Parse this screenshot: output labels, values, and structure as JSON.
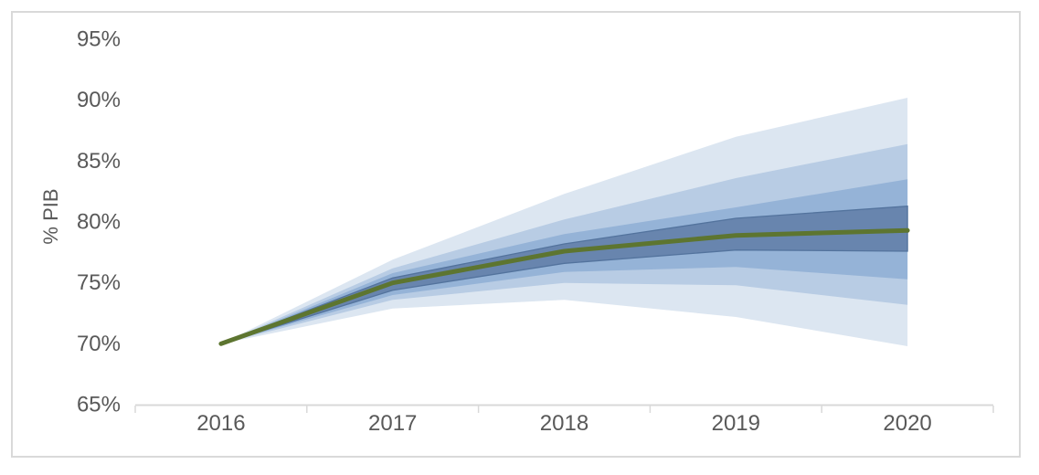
{
  "chart_data": {
    "type": "area",
    "subtype": "fan-chart",
    "title": "",
    "xlabel": "",
    "ylabel": "% PIB",
    "categories": [
      "2016",
      "2017",
      "2018",
      "2019",
      "2020"
    ],
    "ylim": [
      65,
      95
    ],
    "y_tick_step": 5,
    "grid": false,
    "legend": "none",
    "y_ticks": [
      {
        "value": 95,
        "label": "95%"
      },
      {
        "value": 90,
        "label": "90%"
      },
      {
        "value": 85,
        "label": "85%"
      },
      {
        "value": 80,
        "label": "80%"
      },
      {
        "value": 75,
        "label": "75%"
      },
      {
        "value": 70,
        "label": "70%"
      },
      {
        "value": 65,
        "label": "65%"
      }
    ],
    "central_line": {
      "name": "central-projection",
      "color": "#5d7530",
      "values": [
        70.0,
        75.0,
        77.6,
        78.9,
        79.3
      ]
    },
    "bands": [
      {
        "name": "band-outermost",
        "color": "#dce6f1",
        "upper": [
          70.0,
          76.9,
          82.3,
          87.0,
          90.2
        ],
        "lower": [
          70.0,
          72.9,
          73.6,
          72.2,
          69.8
        ]
      },
      {
        "name": "band-outer-mid",
        "color": "#b8cce4",
        "upper": [
          70.0,
          76.2,
          80.2,
          83.6,
          86.4
        ],
        "lower": [
          70.0,
          73.6,
          75.0,
          74.8,
          73.2
        ]
      },
      {
        "name": "band-inner-mid",
        "color": "#95b3d7",
        "upper": [
          70.0,
          75.8,
          79.0,
          81.2,
          83.5
        ],
        "lower": [
          70.0,
          74.0,
          75.9,
          76.3,
          75.3
        ]
      },
      {
        "name": "band-innermost",
        "color": "#6885ae",
        "stroke": "#53739d",
        "upper": [
          70.0,
          75.4,
          78.2,
          80.3,
          81.3
        ],
        "lower": [
          70.0,
          74.4,
          76.6,
          77.7,
          77.6
        ]
      }
    ]
  },
  "frame": {
    "background": "#ffffff",
    "border_color": "#d9d9d9"
  },
  "axis": {
    "line_color": "#d9d9d9",
    "tick_color": "#d9d9d9",
    "label_color": "#595959",
    "title_color": "#595959"
  }
}
